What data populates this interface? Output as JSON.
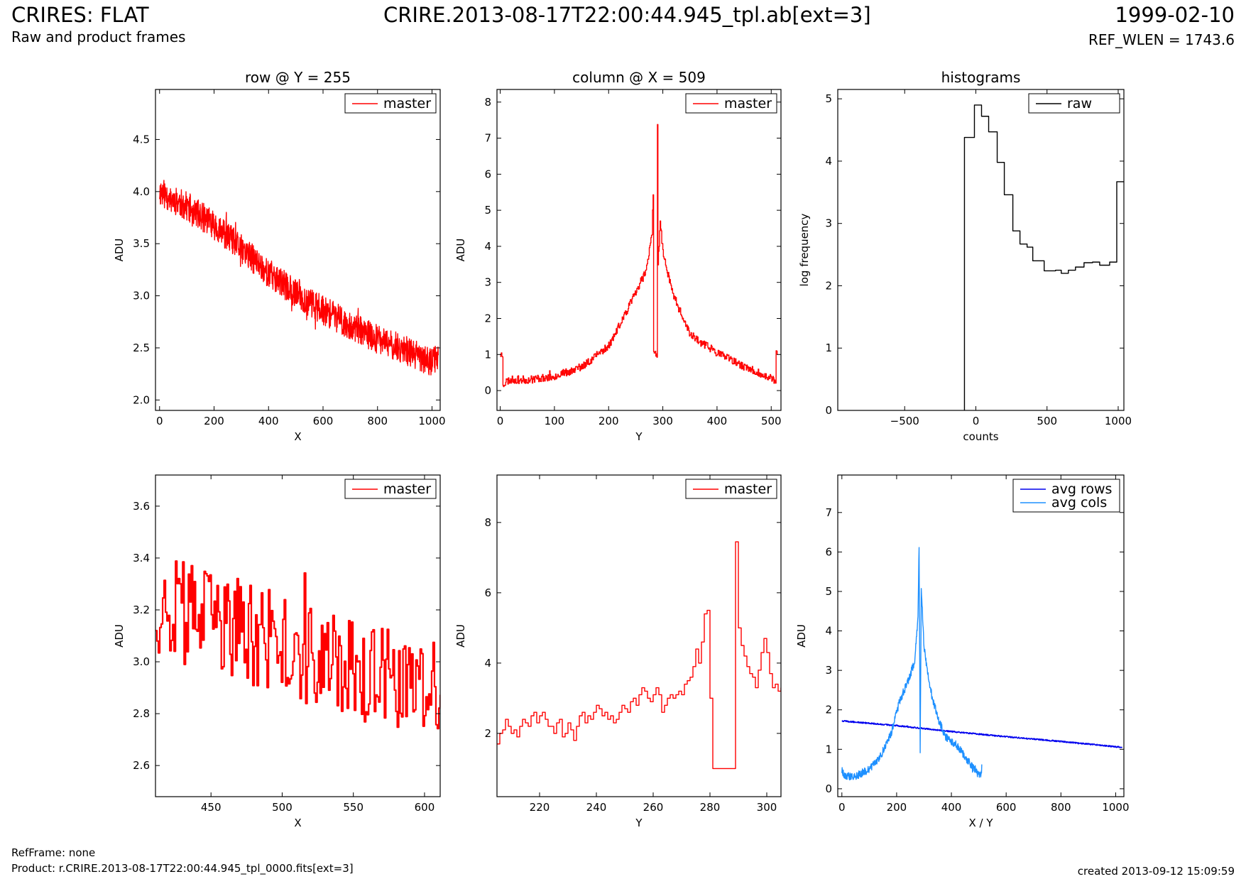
{
  "header": {
    "title": "CRIRES: FLAT",
    "subtitle": "Raw and product frames",
    "file": "CRIRE.2013-08-17T22:00:44.945_tpl.ab[ext=3]",
    "date": "1999-02-10",
    "ref_wlen": "REF_WLEN = 1743.6"
  },
  "footer": {
    "refframe": "RefFrame: none",
    "product": "Product: r.CRIRE.2013-08-17T22:00:44.945_tpl_0000.fits[ext=3]",
    "created": "created 2013-09-12 15:09:59"
  },
  "colors": {
    "master": "#ff0000",
    "raw": "#000000",
    "avg_rows": "#0000ee",
    "avg_cols": "#1e90ff"
  },
  "chart_data": [
    {
      "id": "row",
      "type": "line",
      "title": "row @ Y = 255",
      "xlabel": "X",
      "ylabel": "ADU",
      "xlim": [
        -15,
        1030
      ],
      "ylim": [
        1.9,
        4.98
      ],
      "xticks": [
        "0",
        "200",
        "400",
        "600",
        "800",
        "1000"
      ],
      "xtick_values": [
        0,
        200,
        400,
        600,
        800,
        1000
      ],
      "yticks": [
        "2.0",
        "2.5",
        "3.0",
        "3.5",
        "4.0",
        "4.5"
      ],
      "ytick_values": [
        2.0,
        2.5,
        3.0,
        3.5,
        4.0,
        4.5
      ],
      "legend": {
        "position": "top-right",
        "entries": [
          {
            "label": "master",
            "color": "#ff0000"
          }
        ]
      },
      "series": [
        {
          "name": "master",
          "style": "noisy",
          "x": [
            0,
            100,
            200,
            300,
            400,
            500,
            600,
            700,
            800,
            900,
            1000,
            1023
          ],
          "y": [
            4.0,
            3.86,
            3.68,
            3.45,
            3.22,
            3.02,
            2.86,
            2.72,
            2.58,
            2.48,
            2.36,
            2.42
          ],
          "points": 1024,
          "noise": 0.14,
          "seed": 11
        }
      ]
    },
    {
      "id": "col",
      "type": "line",
      "title": "column @ X = 509",
      "xlabel": "Y",
      "ylabel": "ADU",
      "xlim": [
        -6,
        518
      ],
      "ylim": [
        -0.55,
        8.35
      ],
      "xticks": [
        "0",
        "100",
        "200",
        "300",
        "400",
        "500"
      ],
      "xtick_values": [
        0,
        100,
        200,
        300,
        400,
        500
      ],
      "yticks": [
        "0",
        "1",
        "2",
        "3",
        "4",
        "5",
        "6",
        "7",
        "8"
      ],
      "ytick_values": [
        0,
        1,
        2,
        3,
        4,
        5,
        6,
        7,
        8
      ],
      "legend": {
        "position": "top-right",
        "entries": [
          {
            "label": "master",
            "color": "#ff0000"
          }
        ]
      },
      "series": [
        {
          "name": "master",
          "style": "steps",
          "x": [
            0,
            4,
            5,
            9,
            10,
            20,
            50,
            100,
            150,
            200,
            230,
            255,
            270,
            280,
            282,
            283,
            289,
            290,
            291,
            295,
            300,
            320,
            350,
            400,
            450,
            500,
            508,
            509,
            511
          ],
          "y": [
            1.0,
            1.0,
            0.2,
            0.2,
            0.25,
            0.3,
            0.3,
            0.4,
            0.65,
            1.25,
            2.1,
            2.9,
            3.4,
            4.4,
            5.5,
            1.0,
            1.0,
            7.45,
            3.5,
            4.7,
            3.8,
            2.6,
            1.55,
            1.05,
            0.65,
            0.35,
            0.2,
            1.0,
            1.0
          ],
          "points": 512,
          "noise": 0.11,
          "seed": 23
        }
      ]
    },
    {
      "id": "hist",
      "type": "line",
      "title": "histograms",
      "xlabel": "counts",
      "ylabel": "log frequency",
      "xlim": [
        -970,
        1040
      ],
      "ylim": [
        0,
        5.15
      ],
      "xticks": [
        "−500",
        "0",
        "500",
        "1000"
      ],
      "xtick_values": [
        -500,
        0,
        500,
        1000
      ],
      "yticks": [
        "0",
        "1",
        "2",
        "3",
        "4",
        "5"
      ],
      "ytick_values": [
        0,
        1,
        2,
        3,
        4,
        5
      ],
      "legend": {
        "position": "top-right",
        "entries": [
          {
            "label": "raw",
            "color": "#000000"
          }
        ]
      },
      "series": [
        {
          "name": "raw",
          "style": "hist",
          "edges": [
            -80,
            -10,
            40,
            90,
            150,
            200,
            260,
            310,
            360,
            400,
            480,
            560,
            600,
            650,
            700,
            760,
            820,
            870,
            940,
            990,
            1040
          ],
          "values": [
            4.38,
            4.9,
            4.72,
            4.47,
            3.98,
            3.46,
            2.88,
            2.67,
            2.62,
            2.4,
            2.24,
            2.25,
            2.2,
            2.25,
            2.3,
            2.37,
            2.38,
            2.33,
            2.38,
            3.67
          ]
        }
      ]
    },
    {
      "id": "rowzoom",
      "type": "line",
      "xlabel": "X",
      "ylabel": "ADU",
      "xlim": [
        411,
        611
      ],
      "ylim": [
        2.48,
        3.72
      ],
      "xticks": [
        "450",
        "500",
        "550",
        "600"
      ],
      "xtick_values": [
        450,
        500,
        550,
        600
      ],
      "yticks": [
        "2.6",
        "2.8",
        "3.0",
        "3.2",
        "3.4",
        "3.6"
      ],
      "ytick_values": [
        2.6,
        2.8,
        3.0,
        3.2,
        3.4,
        3.6
      ],
      "legend": {
        "position": "top-right",
        "entries": [
          {
            "label": "master",
            "color": "#ff0000"
          }
        ]
      },
      "series": [
        {
          "name": "master",
          "style": "steps-noisy",
          "x": [
            411,
            450,
            500,
            550,
            611
          ],
          "y": [
            3.22,
            3.16,
            3.06,
            2.96,
            2.88
          ],
          "points": 200,
          "noise": 0.2,
          "seed": 37
        }
      ]
    },
    {
      "id": "colzoom",
      "type": "line",
      "xlabel": "Y",
      "ylabel": "ADU",
      "xlim": [
        205,
        305
      ],
      "ylim": [
        0.2,
        9.35
      ],
      "xticks": [
        "220",
        "240",
        "260",
        "280",
        "300"
      ],
      "xtick_values": [
        220,
        240,
        260,
        280,
        300
      ],
      "yticks": [
        "2",
        "4",
        "6",
        "8"
      ],
      "ytick_values": [
        2,
        4,
        6,
        8
      ],
      "legend": {
        "position": "top-right",
        "entries": [
          {
            "label": "master",
            "color": "#ff0000"
          }
        ]
      },
      "series": [
        {
          "name": "master",
          "style": "steps",
          "x": [
            205,
            206,
            207,
            208,
            209,
            210,
            211,
            212,
            213,
            214,
            215,
            216,
            217,
            218,
            219,
            220,
            221,
            222,
            223,
            224,
            225,
            226,
            227,
            228,
            229,
            230,
            231,
            232,
            233,
            234,
            235,
            236,
            237,
            238,
            239,
            240,
            241,
            242,
            243,
            244,
            245,
            246,
            247,
            248,
            249,
            250,
            251,
            252,
            253,
            254,
            255,
            256,
            257,
            258,
            259,
            260,
            261,
            262,
            263,
            264,
            265,
            266,
            267,
            268,
            269,
            270,
            271,
            272,
            273,
            274,
            275,
            276,
            277,
            278,
            279,
            280,
            281,
            282,
            283,
            284,
            285,
            286,
            287,
            288,
            289,
            290,
            291,
            292,
            293,
            294,
            295,
            296,
            297,
            298,
            299,
            300,
            301,
            302,
            303,
            304,
            305
          ],
          "y": [
            1.7,
            2.0,
            2.1,
            2.4,
            2.2,
            2.0,
            2.1,
            1.9,
            2.2,
            2.4,
            2.3,
            2.2,
            2.5,
            2.6,
            2.3,
            2.5,
            2.6,
            2.4,
            2.2,
            2.2,
            2.0,
            2.3,
            2.4,
            1.9,
            2.0,
            2.3,
            2.1,
            1.8,
            2.2,
            2.5,
            2.6,
            2.3,
            2.5,
            2.4,
            2.6,
            2.8,
            2.7,
            2.5,
            2.6,
            2.4,
            2.5,
            2.3,
            2.4,
            2.6,
            2.8,
            2.7,
            2.6,
            2.9,
            3.0,
            2.8,
            3.1,
            3.3,
            3.2,
            3.0,
            2.9,
            3.1,
            3.3,
            3.1,
            2.6,
            2.8,
            3.0,
            3.1,
            3.0,
            3.1,
            3.2,
            3.1,
            3.4,
            3.5,
            3.6,
            3.9,
            4.4,
            4.0,
            4.6,
            5.4,
            5.5,
            3.0,
            1.0,
            1.0,
            1.0,
            1.0,
            1.0,
            1.0,
            1.0,
            1.0,
            7.45,
            5.0,
            4.5,
            4.2,
            3.9,
            3.7,
            3.6,
            3.3,
            3.8,
            4.3,
            4.7,
            4.3,
            3.7,
            3.3,
            3.4,
            3.2,
            3.3
          ],
          "points": 0,
          "noise": 0,
          "seed": 1
        }
      ]
    },
    {
      "id": "avg",
      "type": "line",
      "xlabel": "X / Y",
      "ylabel": "ADU",
      "xlim": [
        -15,
        1030
      ],
      "ylim": [
        -0.2,
        7.95
      ],
      "xticks": [
        "0",
        "200",
        "400",
        "600",
        "800",
        "1000"
      ],
      "xtick_values": [
        0,
        200,
        400,
        600,
        800,
        1000
      ],
      "yticks": [
        "0",
        "1",
        "2",
        "3",
        "4",
        "5",
        "6",
        "7"
      ],
      "ytick_values": [
        0,
        1,
        2,
        3,
        4,
        5,
        6,
        7
      ],
      "legend": {
        "position": "top-right",
        "entries": [
          {
            "label": "avg rows",
            "color": "#0000ee"
          },
          {
            "label": "avg cols",
            "color": "#1e90ff"
          }
        ]
      },
      "series": [
        {
          "name": "avg rows",
          "style": "noisy",
          "x": [
            0,
            200,
            400,
            600,
            800,
            1023
          ],
          "y": [
            1.72,
            1.6,
            1.45,
            1.32,
            1.2,
            1.05
          ],
          "points": 1024,
          "noise": 0.018,
          "seed": 5
        },
        {
          "name": "avg cols",
          "style": "noisy",
          "x": [
            0,
            10,
            30,
            60,
            100,
            140,
            180,
            210,
            240,
            265,
            278,
            282,
            286,
            290,
            294,
            300,
            320,
            350,
            380,
            420,
            460,
            500,
            510,
            511
          ],
          "y": [
            0.45,
            0.35,
            0.3,
            0.35,
            0.5,
            0.8,
            1.4,
            2.2,
            2.7,
            3.2,
            4.3,
            6.2,
            1.0,
            5.0,
            4.5,
            3.6,
            2.6,
            1.8,
            1.3,
            1.1,
            0.7,
            0.4,
            0.35,
            0.65
          ],
          "points": 512,
          "noise": 0.1,
          "seed": 9
        }
      ]
    }
  ]
}
